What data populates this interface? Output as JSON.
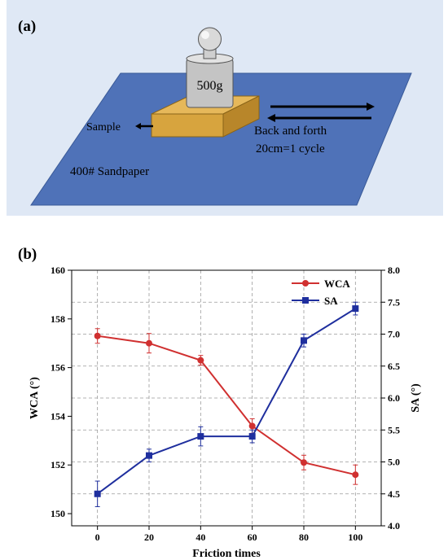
{
  "panel_a": {
    "label": "(a)",
    "weight_label": "500g",
    "sample_label": "Sample",
    "motion_label_1": "Back and forth",
    "motion_label_2": "20cm=1 cycle",
    "sandpaper_label": "400# Sandpaper",
    "colors": {
      "background": "#dfe8f5",
      "sandpaper": "#4f72b8",
      "block": "#d7a43e",
      "weight": "#c4c4c4"
    }
  },
  "panel_b": {
    "label": "(b)"
  },
  "chart_data": {
    "type": "line",
    "x": [
      0,
      20,
      40,
      60,
      80,
      100
    ],
    "xlabel": "Friction times",
    "xlim": [
      -10,
      110
    ],
    "xticks": [
      0,
      20,
      40,
      60,
      80,
      100
    ],
    "ylabel": "WCA (°)",
    "ylim": [
      149.5,
      160
    ],
    "yticks": [
      150,
      152,
      154,
      156,
      158,
      160
    ],
    "y2label": "SA (°)",
    "y2lim": [
      4.0,
      8.0
    ],
    "y2ticks": [
      4.0,
      4.5,
      5.0,
      5.5,
      6.0,
      6.5,
      7.0,
      7.5,
      8.0
    ],
    "grid": true,
    "legend_position": "top-right",
    "series": [
      {
        "name": "WCA",
        "axis": "left",
        "marker": "circle",
        "color": "#d03030",
        "values": [
          157.3,
          157.0,
          156.3,
          153.6,
          152.1,
          151.6
        ],
        "errors": [
          0.3,
          0.4,
          0.2,
          0.3,
          0.3,
          0.4
        ]
      },
      {
        "name": "SA",
        "axis": "right",
        "marker": "square",
        "color": "#1f2f9e",
        "values": [
          4.5,
          5.1,
          5.4,
          5.4,
          6.9,
          7.4
        ],
        "errors": [
          0.2,
          0.1,
          0.15,
          0.1,
          0.1,
          0.1
        ]
      }
    ]
  }
}
